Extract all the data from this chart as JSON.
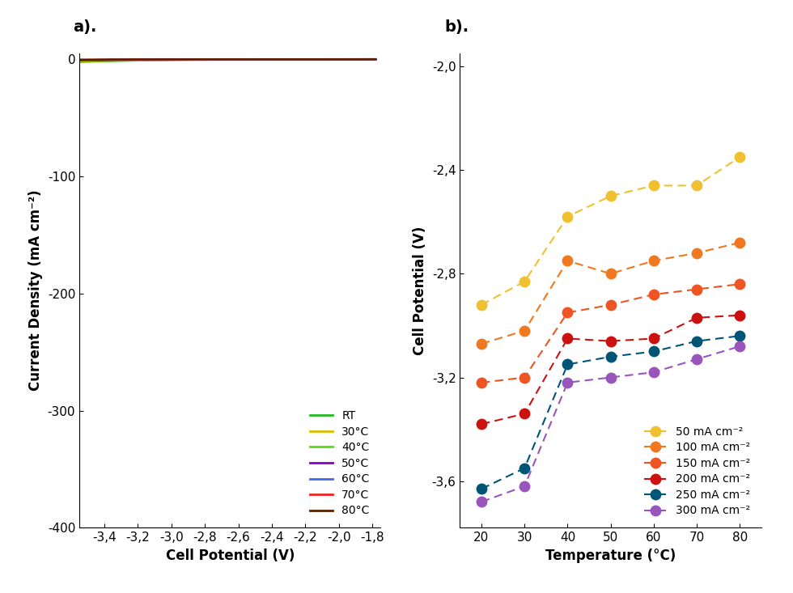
{
  "panel_a": {
    "title": "a).",
    "xlabel": "Cell Potential (V)",
    "ylabel": "Current Density (mA cm⁻²)",
    "xlim": [
      -3.55,
      -1.75
    ],
    "ylim": [
      -400,
      5
    ],
    "xticks": [
      -3.4,
      -3.2,
      -3.0,
      -2.8,
      -2.6,
      -2.4,
      -2.2,
      -2.0,
      -1.8
    ],
    "yticks": [
      0,
      -100,
      -200,
      -300,
      -400
    ],
    "curves": [
      {
        "label": "RT",
        "color": "#22bb22",
        "A": 0.0012,
        "B": 3.8
      },
      {
        "label": "30°C",
        "color": "#ddbb00",
        "A": 0.0016,
        "B": 3.55
      },
      {
        "label": "40°C",
        "color": "#55dd11",
        "A": 0.0012,
        "B": 3.45
      },
      {
        "label": "50°C",
        "color": "#8800cc",
        "A": 0.0008,
        "B": 3.3
      },
      {
        "label": "60°C",
        "color": "#4466ee",
        "A": 0.0006,
        "B": 3.2
      },
      {
        "label": "70°C",
        "color": "#ee2222",
        "A": 0.0004,
        "B": 3.1
      },
      {
        "label": "80°C",
        "color": "#552200",
        "A": 0.00025,
        "B": 3.0
      }
    ]
  },
  "panel_b": {
    "title": "b).",
    "xlabel": "Temperature (°C)",
    "ylabel": "Cell Potential (V)",
    "xlim": [
      15,
      85
    ],
    "ylim": [
      -3.78,
      -1.95
    ],
    "xticks": [
      20,
      30,
      40,
      50,
      60,
      70,
      80
    ],
    "yticks": [
      -2.0,
      -2.4,
      -2.8,
      -3.2,
      -3.6
    ],
    "series": [
      {
        "label": "50 mA cm⁻²",
        "color": "#f0c030",
        "temps": [
          20,
          30,
          40,
          50,
          60,
          70,
          80
        ],
        "potentials": [
          -2.92,
          -2.83,
          -2.58,
          -2.5,
          -2.46,
          -2.46,
          -2.35
        ]
      },
      {
        "label": "100 mA cm⁻²",
        "color": "#f07820",
        "temps": [
          20,
          30,
          40,
          50,
          60,
          70,
          80
        ],
        "potentials": [
          -3.07,
          -3.02,
          -2.75,
          -2.8,
          -2.75,
          -2.72,
          -2.68
        ]
      },
      {
        "label": "150 mA cm⁻²",
        "color": "#ee5522",
        "temps": [
          20,
          30,
          40,
          50,
          60,
          70,
          80
        ],
        "potentials": [
          -3.22,
          -3.2,
          -2.95,
          -2.92,
          -2.88,
          -2.86,
          -2.84
        ]
      },
      {
        "label": "200 mA cm⁻²",
        "color": "#cc1111",
        "temps": [
          20,
          30,
          40,
          50,
          60,
          70,
          80
        ],
        "potentials": [
          -3.38,
          -3.34,
          -3.05,
          -3.06,
          -3.05,
          -2.97,
          -2.96
        ]
      },
      {
        "label": "250 mA cm⁻²",
        "color": "#005577",
        "temps": [
          20,
          30,
          40,
          50,
          60,
          70,
          80
        ],
        "potentials": [
          -3.63,
          -3.55,
          -3.15,
          -3.12,
          -3.1,
          -3.06,
          -3.04
        ]
      },
      {
        "label": "300 mA cm⁻²",
        "color": "#9955bb",
        "temps": [
          20,
          30,
          40,
          50,
          60,
          70,
          80
        ],
        "potentials": [
          -3.68,
          -3.62,
          -3.22,
          -3.2,
          -3.18,
          -3.13,
          -3.08
        ]
      }
    ]
  }
}
